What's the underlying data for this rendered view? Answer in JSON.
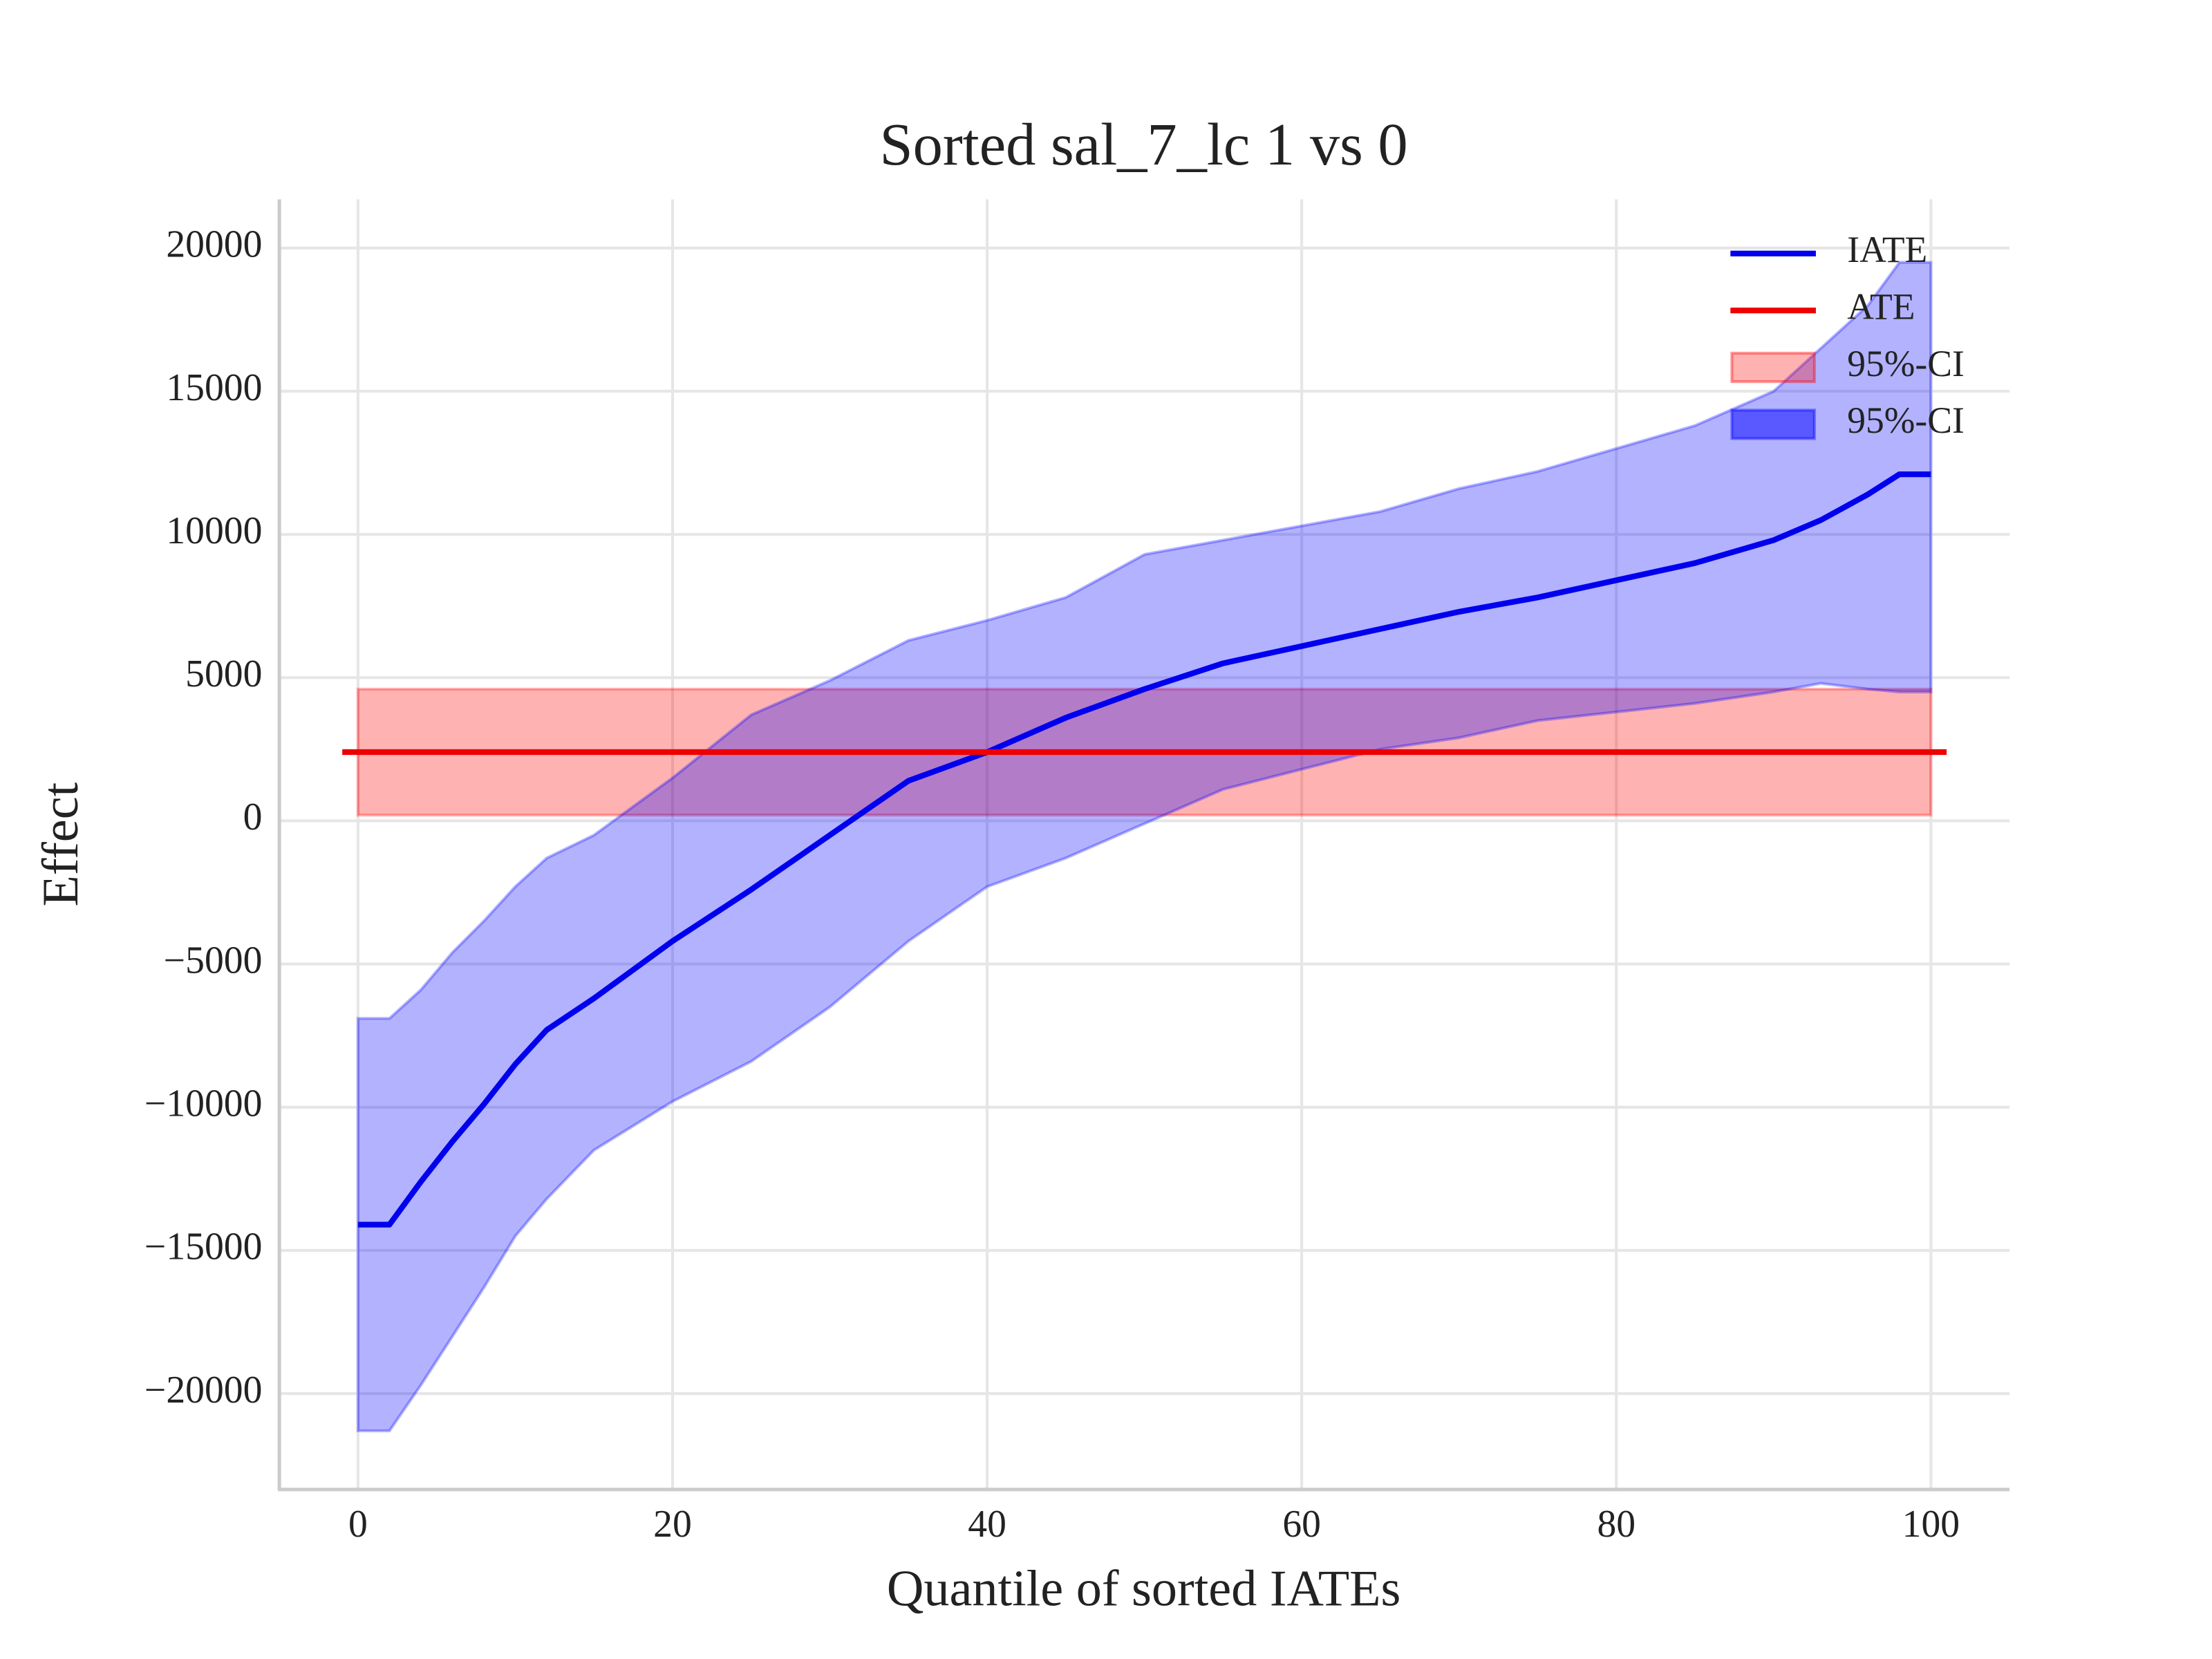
{
  "chart_data": {
    "type": "line",
    "title": "Sorted sal_7_lc 1 vs 0",
    "x_label": "Quantile of sorted IATEs",
    "y_label": "Effect",
    "xlim": [
      -5,
      105
    ],
    "ylim": [
      -23300,
      21700
    ],
    "xticks": [
      0,
      20,
      40,
      60,
      80,
      100
    ],
    "yticks": [
      {
        "value": -20000,
        "label": "−20000"
      },
      {
        "value": -15000,
        "label": "−15000"
      },
      {
        "value": -10000,
        "label": "−10000"
      },
      {
        "value": -5000,
        "label": "−5000"
      },
      0,
      5000,
      10000,
      15000,
      20000
    ],
    "grid": true,
    "legend": "upper right",
    "x": [
      0,
      2,
      4,
      6,
      8,
      10,
      12,
      15,
      20,
      25,
      30,
      35,
      40,
      45,
      50,
      55,
      60,
      65,
      70,
      75,
      80,
      85,
      90,
      93,
      96,
      98,
      100
    ],
    "series": [
      {
        "name": "IATE",
        "color": "#0000ee",
        "values": [
          -14100,
          -14100,
          -12600,
          -11200,
          -9900,
          -8500,
          -7300,
          -6200,
          -4200,
          -2400,
          -500,
          1400,
          2400,
          3600,
          4600,
          5500,
          6100,
          6700,
          7300,
          7800,
          8400,
          9000,
          9800,
          10500,
          11400,
          12100,
          12100
        ]
      },
      {
        "name": "ATE",
        "color": "#ee0000",
        "x": [
          -1,
          101
        ],
        "values": [
          2400,
          2400
        ]
      }
    ],
    "bands": [
      {
        "name": "95%-CI",
        "color": "#ff0000",
        "x": [
          0,
          100
        ],
        "lower": [
          200,
          200
        ],
        "upper": [
          4600,
          4600
        ]
      },
      {
        "name": "95%-CI",
        "color": "#0000ff",
        "lower": [
          -21300,
          -21300,
          -19700,
          -18000,
          -16300,
          -14500,
          -13200,
          -11500,
          -9800,
          -8400,
          -6500,
          -4200,
          -2300,
          -1300,
          -100,
          1100,
          1800,
          2500,
          2900,
          3500,
          3800,
          4100,
          4500,
          4800,
          4600,
          4500,
          4500
        ],
        "upper": [
          -6900,
          -6900,
          -5900,
          -4600,
          -3500,
          -2300,
          -1300,
          -500,
          1500,
          3700,
          4900,
          6300,
          7000,
          7800,
          9300,
          9800,
          10300,
          10800,
          11600,
          12200,
          13000,
          13800,
          15000,
          16500,
          18000,
          19500,
          19500
        ]
      }
    ]
  }
}
